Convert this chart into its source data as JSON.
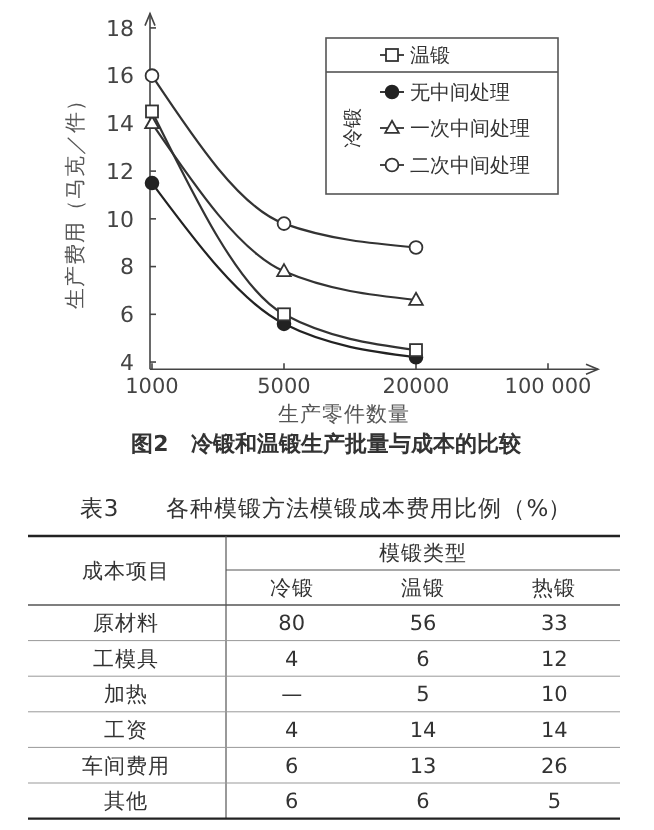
{
  "chart_data": [
    {
      "type": "line",
      "title": "图2　冷锻和温锻生产批量与成本的比较",
      "xlabel": "生产零件数量",
      "ylabel": "生产费用（马克／件）",
      "categories": [
        "1000",
        "5000",
        "20000",
        "100 000"
      ],
      "ylim": [
        3.7,
        18.6
      ],
      "yticks": [
        4,
        6,
        8,
        10,
        12,
        14,
        16,
        18
      ],
      "legend": "top right",
      "legend_title": "冷锻",
      "grid": false,
      "series": [
        {
          "name": "温锻",
          "color": "#333333",
          "marker": "square",
          "values": [
            14.5,
            6.0,
            4.5,
            null
          ]
        },
        {
          "name": "无中间处理",
          "color": "#222222",
          "marker": "circle",
          "values": [
            11.5,
            5.6,
            4.2,
            null
          ]
        },
        {
          "name": "一次中间处理",
          "color": "#333333",
          "marker": "triangle",
          "values": [
            14.0,
            7.8,
            6.6,
            null
          ]
        },
        {
          "name": "二次中间处理",
          "color": "#333333",
          "marker": "circle",
          "values": [
            16.0,
            9.8,
            8.8,
            null
          ]
        }
      ]
    },
    {
      "type": "heatmap",
      "title": "表3　　各种模锻方法模锻成本费用比例（%）",
      "xlabel": "成本项目",
      "legend_title": "模锻类型",
      "categories": [
        "冷锻",
        "温锻",
        "热锻"
      ],
      "y_categories": [
        "原材料",
        "工模具",
        "加热",
        "工资",
        "车间费用",
        "其他"
      ],
      "cells": [
        [
          80,
          56,
          33
        ],
        [
          4,
          6,
          12
        ],
        [
          null,
          5,
          10
        ],
        [
          4,
          14,
          14
        ],
        [
          6,
          13,
          26
        ],
        [
          6,
          6,
          5
        ]
      ],
      "data_labels": true,
      "annotations": [
        "—"
      ]
    }
  ]
}
